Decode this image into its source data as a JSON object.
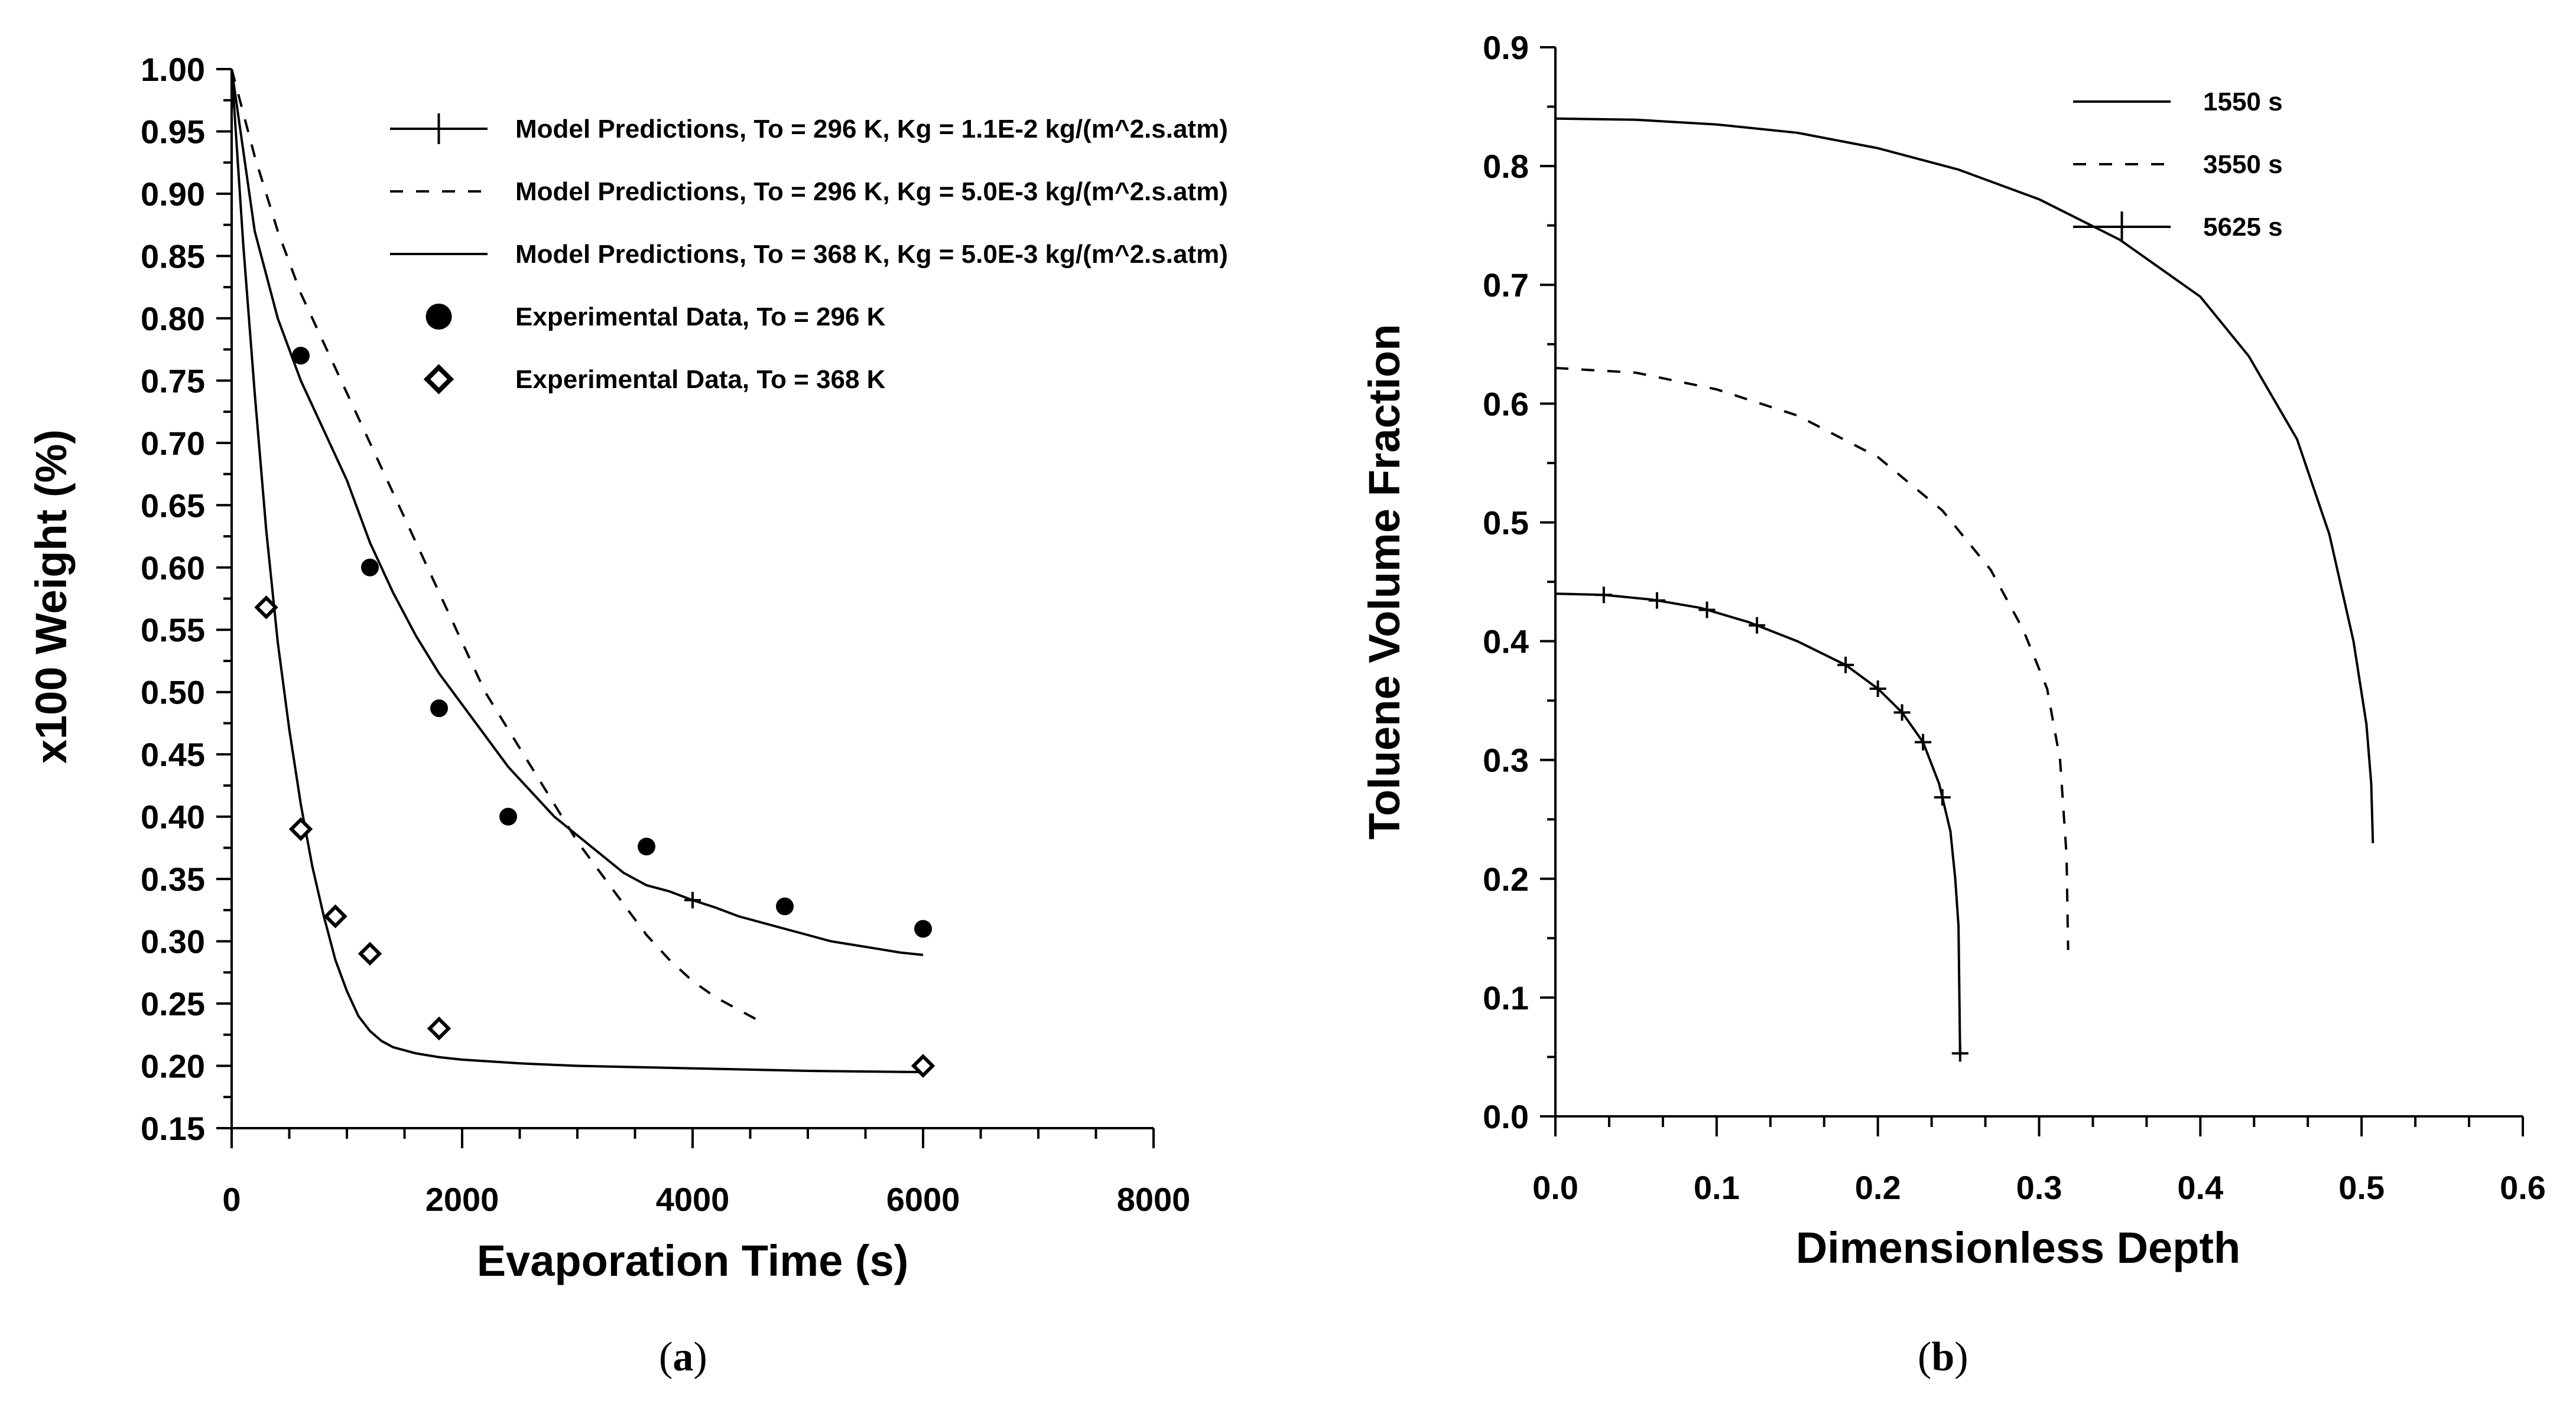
{
  "chart_data": [
    {
      "id": "a",
      "type": "line",
      "panel_label": "a",
      "xlabel": "Evaporation Time (s)",
      "ylabel": "x100 Weight (%)",
      "xlim": [
        0,
        8000
      ],
      "ylim": [
        0.15,
        1.0
      ],
      "xticks": [
        0,
        2000,
        4000,
        6000,
        8000
      ],
      "xtick_labels": [
        "0",
        "2000",
        "4000",
        "6000",
        "8000"
      ],
      "yticks": [
        1.0,
        0.95,
        0.9,
        0.85,
        0.8,
        0.75,
        0.7,
        0.65,
        0.6,
        0.55,
        0.5,
        0.45,
        0.4,
        0.35,
        0.3,
        0.25,
        0.2,
        0.15
      ],
      "ytick_labels": [
        "1.00",
        "0.95",
        "0.90",
        "0.85",
        "0.80",
        "0.75",
        "0.70",
        "0.65",
        "0.60",
        "0.55",
        "0.50",
        "0.45",
        "0.40",
        "0.35",
        "0.30",
        "0.25",
        "0.20",
        "0.15"
      ],
      "series": [
        {
          "name": "Model Predictions, To = 296 K, Kg = 1.1E-2 kg/(m^2.s.atm)",
          "style": "solid-plus",
          "x": [
            0,
            200,
            400,
            600,
            800,
            1000,
            1200,
            1400,
            1600,
            1800,
            2000,
            2200,
            2400,
            2600,
            2800,
            3000,
            3200,
            3400,
            3600,
            3800,
            4000,
            4200,
            4400,
            4600,
            4800,
            5000,
            5200,
            5400,
            5600,
            5800,
            6000
          ],
          "y": [
            1.0,
            0.87,
            0.8,
            0.75,
            0.71,
            0.67,
            0.62,
            0.58,
            0.545,
            0.515,
            0.49,
            0.465,
            0.44,
            0.42,
            0.4,
            0.385,
            0.37,
            0.355,
            0.345,
            0.34,
            0.333,
            0.327,
            0.32,
            0.315,
            0.31,
            0.305,
            0.3,
            0.297,
            0.294,
            0.291,
            0.289
          ],
          "marker_x": [
            4000
          ]
        },
        {
          "name": "Model Predictions, To = 296 K, Kg = 5.0E-3 kg/(m^2.s.atm)",
          "style": "dashed",
          "x": [
            0,
            200,
            400,
            600,
            800,
            1000,
            1200,
            1400,
            1600,
            1800,
            2000,
            2200,
            2400,
            2600,
            2800,
            3000,
            3200,
            3400,
            3600,
            3800,
            4000,
            4200,
            4400,
            4600
          ],
          "y": [
            1.0,
            0.93,
            0.87,
            0.82,
            0.78,
            0.74,
            0.7,
            0.66,
            0.62,
            0.58,
            0.54,
            0.5,
            0.47,
            0.44,
            0.41,
            0.38,
            0.355,
            0.33,
            0.305,
            0.285,
            0.268,
            0.255,
            0.245,
            0.235
          ]
        },
        {
          "name": "Model Predictions, To = 368 K, Kg = 5.0E-3 kg/(m^2.s.atm)",
          "style": "solid",
          "x": [
            0,
            100,
            200,
            300,
            400,
            500,
            600,
            700,
            800,
            900,
            1000,
            1100,
            1200,
            1300,
            1400,
            1600,
            1800,
            2000,
            2500,
            3000,
            4000,
            5000,
            6000
          ],
          "y": [
            1.0,
            0.86,
            0.74,
            0.63,
            0.54,
            0.47,
            0.41,
            0.36,
            0.32,
            0.285,
            0.26,
            0.24,
            0.228,
            0.22,
            0.215,
            0.21,
            0.207,
            0.205,
            0.202,
            0.2,
            0.198,
            0.196,
            0.195
          ]
        },
        {
          "name": "Experimental Data, To = 296 K",
          "style": "filled-circle",
          "x": [
            600,
            1200,
            1800,
            2400,
            3600,
            4800,
            6000
          ],
          "y": [
            0.77,
            0.6,
            0.487,
            0.4,
            0.376,
            0.328,
            0.31
          ]
        },
        {
          "name": "Experimental Data, To = 368 K",
          "style": "open-diamond",
          "x": [
            300,
            600,
            900,
            1200,
            1800,
            6000
          ],
          "y": [
            0.568,
            0.39,
            0.32,
            0.29,
            0.23,
            0.2
          ]
        }
      ]
    },
    {
      "id": "b",
      "type": "line",
      "panel_label": "b",
      "xlabel": "Dimensionless Depth",
      "ylabel": "Toluene Volume Fraction",
      "xlim": [
        0,
        0.6
      ],
      "ylim": [
        0,
        0.9
      ],
      "xticks": [
        0,
        0.1,
        0.2,
        0.3,
        0.4,
        0.5,
        0.6
      ],
      "xtick_labels": [
        "0.0",
        "0.1",
        "0.2",
        "0.3",
        "0.4",
        "0.5",
        "0.6"
      ],
      "yticks": [
        0.9,
        0.8,
        0.7,
        0.6,
        0.5,
        0.4,
        0.3,
        0.2,
        0.1,
        0.0
      ],
      "ytick_labels": [
        "0.9",
        "0.8",
        "0.7",
        "0.6",
        "0.5",
        "0.4",
        "0.3",
        "0.2",
        "0.1",
        "0.0"
      ],
      "series": [
        {
          "name": "1550 s",
          "style": "solid",
          "x": [
            0,
            0.05,
            0.1,
            0.15,
            0.2,
            0.25,
            0.3,
            0.35,
            0.4,
            0.43,
            0.46,
            0.48,
            0.495,
            0.503,
            0.506,
            0.507
          ],
          "y": [
            0.84,
            0.839,
            0.835,
            0.828,
            0.815,
            0.797,
            0.772,
            0.738,
            0.69,
            0.64,
            0.57,
            0.49,
            0.4,
            0.33,
            0.28,
            0.23
          ]
        },
        {
          "name": "3550 s",
          "style": "dashed",
          "x": [
            0,
            0.05,
            0.1,
            0.15,
            0.2,
            0.24,
            0.27,
            0.29,
            0.305,
            0.313,
            0.317,
            0.318
          ],
          "y": [
            0.63,
            0.626,
            0.612,
            0.59,
            0.555,
            0.51,
            0.46,
            0.41,
            0.36,
            0.3,
            0.22,
            0.14
          ]
        },
        {
          "name": "5625 s",
          "style": "solid-plus",
          "x": [
            0,
            0.03,
            0.06,
            0.09,
            0.12,
            0.15,
            0.18,
            0.2,
            0.215,
            0.228,
            0.238,
            0.245,
            0.248,
            0.25,
            0.251
          ],
          "y": [
            0.44,
            0.439,
            0.435,
            0.428,
            0.416,
            0.4,
            0.38,
            0.36,
            0.34,
            0.315,
            0.28,
            0.24,
            0.2,
            0.16,
            0.053
          ],
          "marker_x": [
            0.03,
            0.063,
            0.094,
            0.125,
            0.18,
            0.2,
            0.215,
            0.228,
            0.24,
            0.251
          ]
        }
      ]
    }
  ]
}
